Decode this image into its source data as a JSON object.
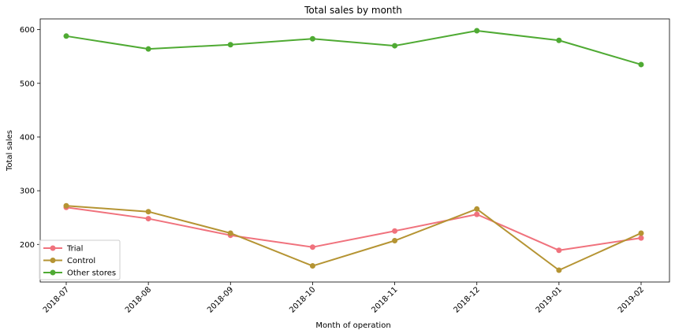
{
  "chart_data": {
    "type": "line",
    "title": "Total sales by month",
    "xlabel": "Month of operation",
    "ylabel": "Total sales",
    "categories": [
      "2018-07",
      "2018-08",
      "2018-09",
      "2018-10",
      "2018-11",
      "2018-12",
      "2019-01",
      "2019-02"
    ],
    "ylim": [
      130,
      620
    ],
    "yticks": [
      200,
      300,
      400,
      500,
      600
    ],
    "grid": false,
    "legend_position": "bottom-left",
    "series": [
      {
        "name": "Trial",
        "color": "#f0727d",
        "values": [
          269,
          248,
          217,
          195,
          225,
          256,
          189,
          212
        ]
      },
      {
        "name": "Control",
        "color": "#b59433",
        "values": [
          272,
          261,
          221,
          160,
          207,
          266,
          152,
          221
        ]
      },
      {
        "name": "Other stores",
        "color": "#4faa33",
        "values": [
          588,
          564,
          572,
          583,
          570,
          598,
          580,
          535
        ]
      }
    ]
  }
}
